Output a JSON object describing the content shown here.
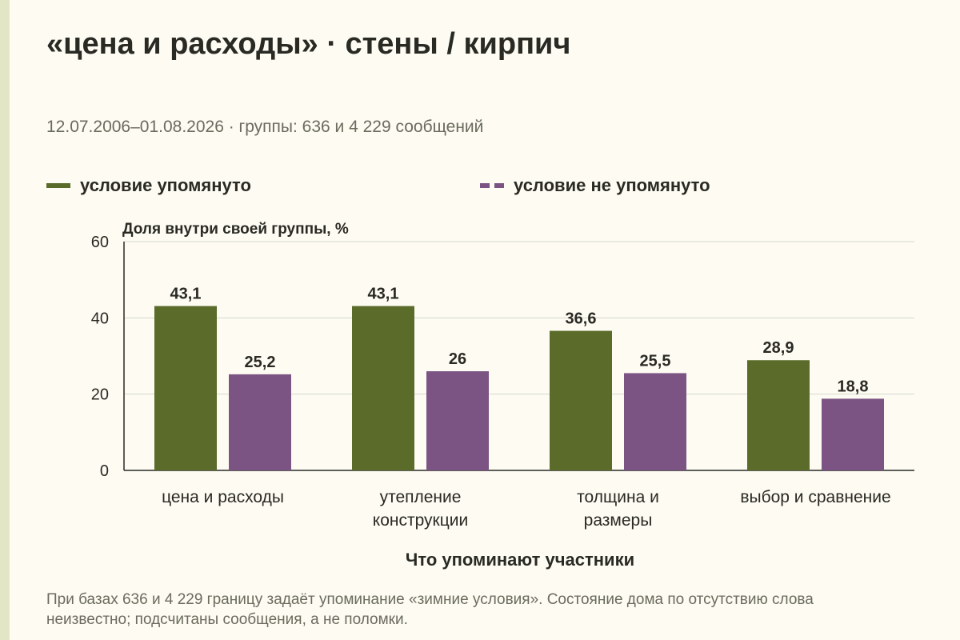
{
  "title": "«цена и расходы» · стены / кирпич",
  "subtitle": "12.07.2006–01.08.2026 · группы: 636 и 4 229 сообщений",
  "legend": {
    "mentioned": "условие упомянуто",
    "not_mentioned": "условие не упомянуто"
  },
  "footnote": "При базах 636 и 4 229 границу задаёт упоминание «зимние условия». Состояние дома по отсутствию слова неизвестно; подсчитаны сообщения, а не поломки.",
  "colors": {
    "mentioned": "#5a6b2a",
    "not_mentioned": "#7b5484"
  },
  "chart_data": {
    "type": "bar",
    "ylabel": "Доля внутри своей группы, %",
    "xlabel": "Что упоминают участники",
    "ylim": [
      0,
      60
    ],
    "yticks": [
      0,
      20,
      40,
      60
    ],
    "grid": true,
    "legend_position": "top",
    "categories": [
      [
        "цена и расходы"
      ],
      [
        "утепление",
        "конструкции"
      ],
      [
        "толщина и",
        "размеры"
      ],
      [
        "выбор и сравнение"
      ]
    ],
    "series": [
      {
        "name": "условие упомянуто",
        "values": [
          43.1,
          43.1,
          36.6,
          28.9
        ],
        "labels": [
          "43,1",
          "43,1",
          "36,6",
          "28,9"
        ]
      },
      {
        "name": "условие не упомянуто",
        "values": [
          25.2,
          26,
          25.5,
          18.8
        ],
        "labels": [
          "25,2",
          "26",
          "25,5",
          "18,8"
        ]
      }
    ]
  }
}
